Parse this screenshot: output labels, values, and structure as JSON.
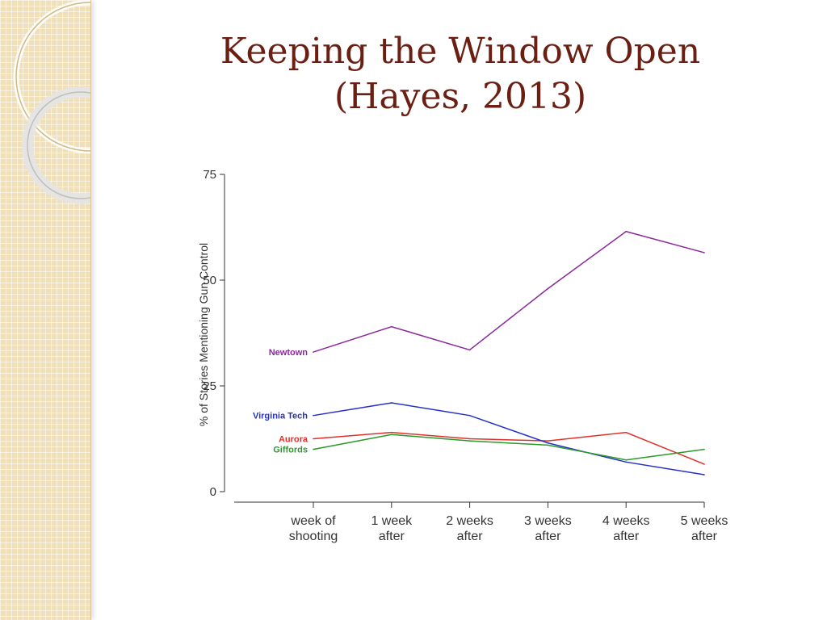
{
  "slide": {
    "title_line1": "Keeping the Window Open",
    "title_line2": "(Hayes, 2013)"
  },
  "colors": {
    "title": "#6b1f12",
    "newtown": "#8b2a9c",
    "aurora": "#e0302a",
    "virginia_tech": "#2430c8",
    "giffords": "#2a9a2a",
    "side_strip": "#efe0b9"
  },
  "chart_data": {
    "type": "line",
    "ylabel": "% of Stories Mentioning Gun Control",
    "xlabel": "",
    "ylim": [
      0,
      75
    ],
    "yticks": [
      "0",
      "25",
      "50",
      "75"
    ],
    "categories": [
      [
        "week of",
        "shooting"
      ],
      [
        "1 week",
        "after"
      ],
      [
        "2 weeks",
        "after"
      ],
      [
        "3 weeks",
        "after"
      ],
      [
        "4 weeks",
        "after"
      ],
      [
        "5 weeks",
        "after"
      ]
    ],
    "grid": false,
    "legend": "direct labels at left of lines",
    "series": [
      {
        "name": "Newtown",
        "color": "#8b2a9c",
        "values": [
          33,
          39,
          33.5,
          48,
          61.5,
          56.5
        ]
      },
      {
        "name": "Aurora",
        "color": "#e0302a",
        "values": [
          12.5,
          14,
          12.5,
          12,
          14,
          6.5
        ]
      },
      {
        "name": "Virginia Tech",
        "color": "#2430c8",
        "values": [
          18,
          21,
          18,
          11.5,
          7,
          4
        ]
      },
      {
        "name": "Giffords",
        "color": "#2a9a2a",
        "values": [
          10,
          13.5,
          12,
          11,
          7.5,
          10
        ]
      }
    ]
  }
}
